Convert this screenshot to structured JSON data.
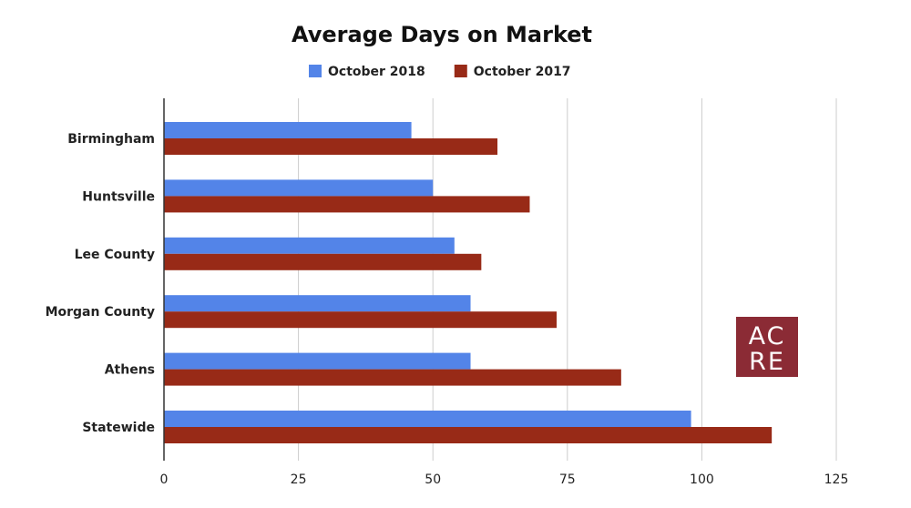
{
  "chart_data": {
    "type": "bar",
    "orientation": "horizontal",
    "title": "Average Days on Market",
    "categories": [
      "Birmingham",
      "Huntsville",
      "Lee County",
      "Morgan County",
      "Athens",
      "Statewide"
    ],
    "series": [
      {
        "name": "October 2018",
        "color": "#5384e8",
        "values": [
          46,
          50,
          54,
          57,
          57,
          98
        ]
      },
      {
        "name": "October 2017",
        "color": "#982a17",
        "values": [
          62,
          68,
          59,
          73,
          85,
          113
        ]
      }
    ],
    "xlim": [
      0,
      125
    ],
    "xticks": [
      0,
      25,
      50,
      75,
      100,
      125
    ],
    "xtick_labels": [
      "0",
      "25",
      "50",
      "75",
      "100",
      "125"
    ],
    "grid": true,
    "legend_position": "top"
  },
  "logo": {
    "line1": "AC",
    "line2": "RE",
    "color": "#8b2b35"
  }
}
